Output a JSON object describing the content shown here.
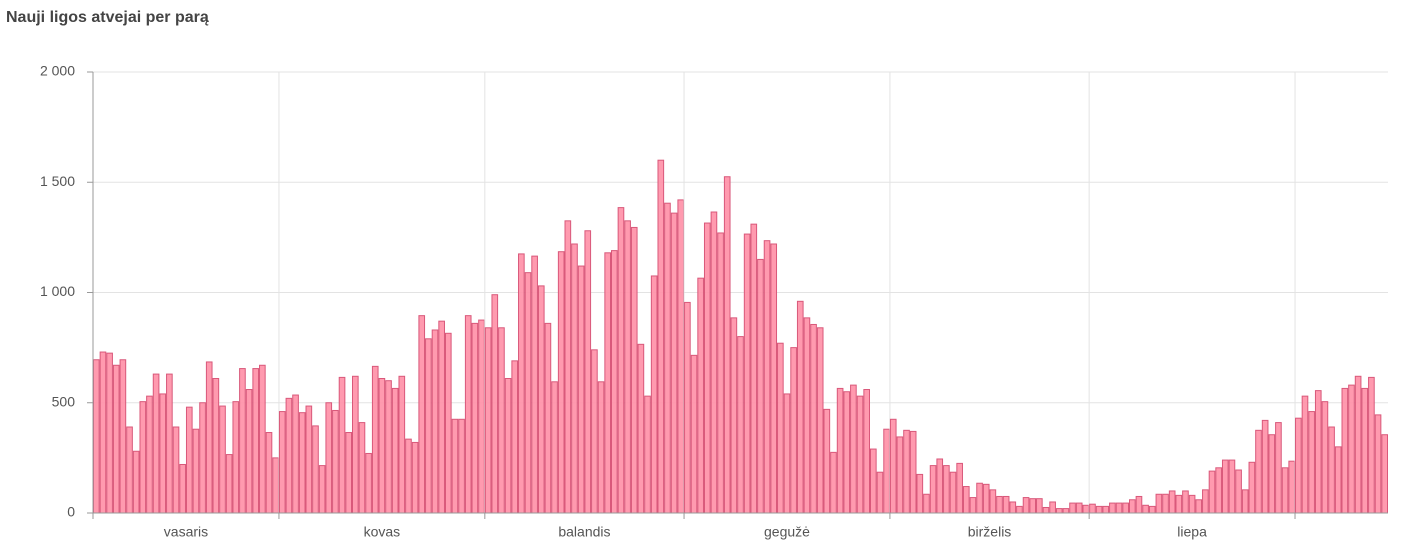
{
  "chart_data": {
    "type": "bar",
    "title": "Nauji ligos atvejai per parą",
    "categories": [
      "vasaris",
      "kovas",
      "balandis",
      "gegužė",
      "birželis",
      "liepa",
      null
    ],
    "values": [
      [
        695,
        730,
        725,
        670,
        695,
        390,
        280,
        505,
        530,
        630,
        540,
        630,
        390,
        220,
        480,
        380,
        500,
        685,
        610,
        485,
        265,
        505,
        655,
        560,
        655,
        670,
        365,
        250
      ],
      [
        460,
        520,
        535,
        455,
        485,
        395,
        215,
        500,
        465,
        615,
        365,
        620,
        410,
        270,
        665,
        610,
        600,
        565,
        620,
        335,
        320,
        895,
        790,
        830,
        870,
        815,
        425,
        425,
        895,
        860,
        875
      ],
      [
        840,
        990,
        840,
        610,
        690,
        1175,
        1090,
        1165,
        1030,
        860,
        595,
        1185,
        1325,
        1220,
        1120,
        1280,
        740,
        595,
        1180,
        1190,
        1385,
        1325,
        1295,
        765,
        530,
        1075,
        1600,
        1405,
        1360,
        1420
      ],
      [
        955,
        715,
        1065,
        1315,
        1365,
        1270,
        1525,
        885,
        800,
        1265,
        1310,
        1150,
        1235,
        1220,
        770,
        540,
        750,
        960,
        885,
        855,
        840,
        470,
        275,
        565,
        550,
        580,
        530,
        560,
        290,
        185,
        380
      ],
      [
        425,
        345,
        375,
        370,
        175,
        85,
        215,
        245,
        215,
        185,
        225,
        120,
        70,
        135,
        130,
        105,
        75,
        75,
        50,
        30,
        70,
        65,
        65,
        25,
        50,
        20,
        20,
        45,
        45,
        35
      ],
      [
        40,
        30,
        30,
        45,
        45,
        45,
        60,
        75,
        35,
        30,
        85,
        85,
        100,
        80,
        100,
        80,
        60,
        105,
        190,
        205,
        240,
        240,
        195,
        105,
        230,
        375,
        420,
        355,
        410,
        205,
        235
      ],
      [
        430,
        530,
        460,
        555,
        505,
        390,
        300,
        565,
        580,
        620,
        565,
        615,
        445,
        355
      ]
    ],
    "color": "#ff8fa6",
    "edge_color": "#d9587a",
    "ylim": [
      0,
      2000
    ],
    "yticks": [
      0,
      {
        "value": 500,
        "label": "500"
      },
      {
        "value": 1000,
        "label": "1 000"
      },
      {
        "value": 1500,
        "label": "1 500"
      },
      {
        "value": 2000,
        "label": "2 000"
      }
    ],
    "grid": true
  }
}
